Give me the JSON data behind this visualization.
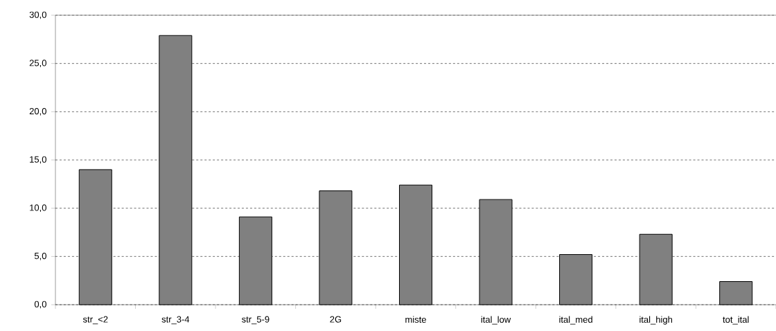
{
  "chart_data": {
    "type": "bar",
    "categories": [
      "str_<2",
      "str_3-4",
      "str_5-9",
      "2G",
      "miste",
      "ital_low",
      "ital_med",
      "ital_high",
      "tot_ital"
    ],
    "values": [
      14.0,
      27.9,
      9.1,
      11.8,
      12.4,
      10.9,
      5.2,
      7.3,
      2.4
    ],
    "color": "#808080",
    "ylim": [
      0,
      30
    ],
    "yticks": [
      {
        "value": 0,
        "label": "0,0"
      },
      {
        "value": 5,
        "label": "5,0"
      },
      {
        "value": 10,
        "label": "10,0"
      },
      {
        "value": 15,
        "label": "15,0"
      },
      {
        "value": 20,
        "label": "20,0"
      },
      {
        "value": 25,
        "label": "25,0"
      },
      {
        "value": 30,
        "label": "30,0"
      }
    ],
    "grid": "y"
  }
}
